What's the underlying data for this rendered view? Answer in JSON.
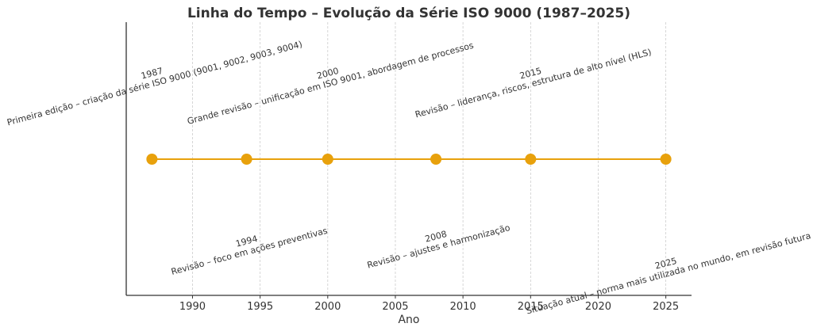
{
  "chart_data": {
    "type": "line",
    "title": "Linha do Tempo – Evolução da Série ISO 9000 (1987–2025)",
    "xlabel": "Ano",
    "ylabel": "",
    "xlim": [
      1985.1,
      2026.9
    ],
    "xticks": [
      1990,
      1995,
      2000,
      2005,
      2010,
      2015,
      2020,
      2025
    ],
    "grid": "x-only dashed",
    "color": "#E8A10C",
    "events": [
      {
        "year": 1987,
        "label": "1987",
        "text": "Primeira edição – criação da série ISO 9000 (9001, 9002, 9003, 9004)",
        "side": "above"
      },
      {
        "year": 1994,
        "label": "1994",
        "text": "Revisão – foco em ações preventivas",
        "side": "below"
      },
      {
        "year": 2000,
        "label": "2000",
        "text": "Grande revisão – unificação em ISO 9001, abordagem de processos",
        "side": "above"
      },
      {
        "year": 2008,
        "label": "2008",
        "text": "Revisão – ajustes e harmonização",
        "side": "below"
      },
      {
        "year": 2015,
        "label": "2015",
        "text": "Revisão – liderança, riscos, estrutura de alto nível (HLS)",
        "side": "above"
      },
      {
        "year": 2025,
        "label": "2025",
        "text": "Situação atual – norma mais utilizada no mundo, em revisão futura",
        "side": "below"
      }
    ]
  }
}
